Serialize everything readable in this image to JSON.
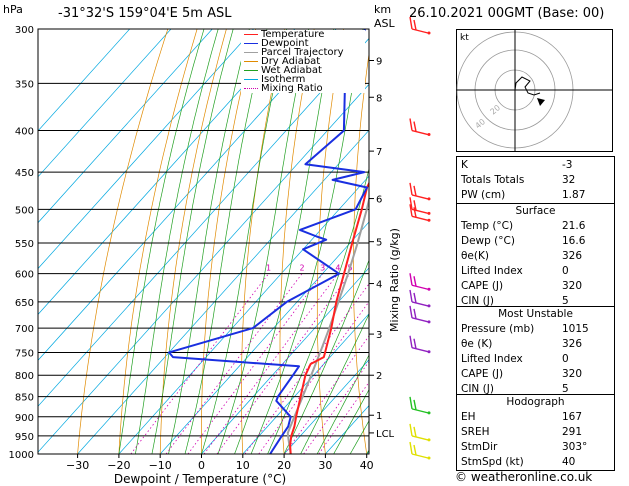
{
  "header": {
    "hpa_unit": "hPa",
    "location": "-31°32'S 159°04'E 5m ASL",
    "km_unit": "km",
    "asl_unit": "ASL",
    "datetime": "26.10.2021 00GMT (Base: 00)"
  },
  "footer": {
    "credit": "© weatheronline.co.uk"
  },
  "chart_data": {
    "type": "skew-t",
    "xlabel": "Dewpoint / Temperature (°C)",
    "ylabel_right": "Mixing Ratio (g/kg)",
    "x_ticks": [
      "−30",
      "−20",
      "−10",
      "0",
      "10",
      "20",
      "30",
      "40"
    ],
    "x_tick_values": [
      -30,
      -20,
      -10,
      0,
      10,
      20,
      30,
      40
    ],
    "pressure_levels": [
      300,
      350,
      400,
      450,
      500,
      550,
      600,
      650,
      700,
      750,
      800,
      850,
      900,
      950,
      1000
    ],
    "km_ticks": [
      {
        "label": "9",
        "p": 328
      },
      {
        "label": "8",
        "p": 364
      },
      {
        "label": "7",
        "p": 424
      },
      {
        "label": "6",
        "p": 485
      },
      {
        "label": "5",
        "p": 548
      },
      {
        "label": "4",
        "p": 617
      },
      {
        "label": "3",
        "p": 712
      },
      {
        "label": "2",
        "p": 800
      },
      {
        "label": "1",
        "p": 896
      },
      {
        "label": "LCL",
        "p": 942
      }
    ],
    "mixing_ratio_labels": [
      "1",
      "2",
      "3",
      "4",
      "5",
      "8",
      "10",
      "15",
      "20",
      "25"
    ],
    "mixing_ratio_values": [
      1,
      2,
      3,
      4,
      5,
      8,
      10,
      15,
      20,
      25
    ],
    "legend": [
      {
        "name": "Temperature",
        "color": "#ff2020",
        "style": "solid"
      },
      {
        "name": "Dewpoint",
        "color": "#1a2fe0",
        "style": "solid"
      },
      {
        "name": "Parcel Trajectory",
        "color": "#a0a0a0",
        "style": "solid"
      },
      {
        "name": "Dry Adiabat",
        "color": "#e08a00",
        "style": "solid"
      },
      {
        "name": "Wet Adiabat",
        "color": "#22a022",
        "style": "solid"
      },
      {
        "name": "Isotherm",
        "color": "#00a8e0",
        "style": "solid"
      },
      {
        "name": "Mixing Ratio",
        "color": "#d000b0",
        "style": "dotted"
      }
    ],
    "temperature": [
      {
        "p": 1000,
        "t": 21.6
      },
      {
        "p": 975,
        "t": 19.5
      },
      {
        "p": 950,
        "t": 17.8
      },
      {
        "p": 925,
        "t": 16.5
      },
      {
        "p": 900,
        "t": 14.8
      },
      {
        "p": 850,
        "t": 11.5
      },
      {
        "p": 800,
        "t": 8.0
      },
      {
        "p": 775,
        "t": 6.8
      },
      {
        "p": 760,
        "t": 8.5
      },
      {
        "p": 750,
        "t": 7.8
      },
      {
        "p": 700,
        "t": 4.0
      },
      {
        "p": 650,
        "t": -0.5
      },
      {
        "p": 600,
        "t": -4.8
      },
      {
        "p": 550,
        "t": -9.5
      },
      {
        "p": 500,
        "t": -14.5
      },
      {
        "p": 470,
        "t": -18.0
      },
      {
        "p": 450,
        "t": -19.5
      },
      {
        "p": 440,
        "t": -20.5
      },
      {
        "p": 420,
        "t": -23.0
      },
      {
        "p": 400,
        "t": -25.5
      },
      {
        "p": 350,
        "t": -33.0
      },
      {
        "p": 300,
        "t": -41.5
      }
    ],
    "dewpoint": [
      {
        "p": 1000,
        "t": 16.6
      },
      {
        "p": 950,
        "t": 15.5
      },
      {
        "p": 925,
        "t": 15.0
      },
      {
        "p": 900,
        "t": 13.5
      },
      {
        "p": 860,
        "t": 6.5
      },
      {
        "p": 850,
        "t": 6.0
      },
      {
        "p": 800,
        "t": 5.0
      },
      {
        "p": 780,
        "t": 4.5
      },
      {
        "p": 760,
        "t": -28.0
      },
      {
        "p": 750,
        "t": -30.0
      },
      {
        "p": 700,
        "t": -15.0
      },
      {
        "p": 650,
        "t": -12.5
      },
      {
        "p": 600,
        "t": -6.0
      },
      {
        "p": 560,
        "t": -20.0
      },
      {
        "p": 545,
        "t": -16.5
      },
      {
        "p": 540,
        "t": -19.5
      },
      {
        "p": 530,
        "t": -25.0
      },
      {
        "p": 500,
        "t": -16.0
      },
      {
        "p": 470,
        "t": -18.0
      },
      {
        "p": 460,
        "t": -28.0
      },
      {
        "p": 450,
        "t": -22.0
      },
      {
        "p": 440,
        "t": -38.0
      },
      {
        "p": 400,
        "t": -36.0
      },
      {
        "p": 350,
        "t": -46.0
      },
      {
        "p": 310,
        "t": -52.0
      },
      {
        "p": 300,
        "t": -53.0
      }
    ],
    "parcel": [
      {
        "p": 1000,
        "t": 21.6
      },
      {
        "p": 950,
        "t": 17.0
      },
      {
        "p": 942,
        "t": 16.3
      },
      {
        "p": 900,
        "t": 14.4
      },
      {
        "p": 850,
        "t": 12.0
      },
      {
        "p": 800,
        "t": 9.4
      },
      {
        "p": 750,
        "t": 6.6
      },
      {
        "p": 700,
        "t": 3.5
      },
      {
        "p": 650,
        "t": 0.0
      },
      {
        "p": 600,
        "t": -3.8
      },
      {
        "p": 550,
        "t": -8.2
      },
      {
        "p": 500,
        "t": -13.3
      },
      {
        "p": 450,
        "t": -19.3
      },
      {
        "p": 400,
        "t": -26.3
      },
      {
        "p": 350,
        "t": -34.7
      },
      {
        "p": 300,
        "t": -44.8
      }
    ],
    "wind_barbs": [
      {
        "p": 300,
        "color": "#ff2020"
      },
      {
        "p": 400,
        "color": "#ff2020"
      },
      {
        "p": 480,
        "color": "#ff2020"
      },
      {
        "p": 500,
        "color": "#ff2020"
      },
      {
        "p": 510,
        "color": "#ff2020"
      },
      {
        "p": 620,
        "color": "#d000b0"
      },
      {
        "p": 650,
        "color": "#9020c0"
      },
      {
        "p": 680,
        "color": "#9020c0"
      },
      {
        "p": 740,
        "color": "#9020c0"
      },
      {
        "p": 880,
        "color": "#22c022"
      },
      {
        "p": 950,
        "color": "#e0e000"
      },
      {
        "p": 1000,
        "color": "#e0e000"
      }
    ]
  },
  "hodograph": {
    "unit_label": "kt",
    "ring_labels": [
      "20",
      "40"
    ]
  },
  "indices": [
    {
      "label": "K",
      "value": "-3"
    },
    {
      "label": "Totals Totals",
      "value": "32"
    },
    {
      "label": "PW (cm)",
      "value": "1.87"
    }
  ],
  "surface": {
    "title": "Surface",
    "rows": [
      {
        "label": "Temp (°C)",
        "value": "21.6"
      },
      {
        "label": "Dewp (°C)",
        "value": "16.6"
      },
      {
        "label": "θe(K)",
        "value": "326"
      },
      {
        "label": "Lifted Index",
        "value": "0"
      },
      {
        "label": "CAPE (J)",
        "value": "320"
      },
      {
        "label": "CIN (J)",
        "value": "5"
      }
    ]
  },
  "most_unstable": {
    "title": "Most Unstable",
    "rows": [
      {
        "label": "Pressure (mb)",
        "value": "1015"
      },
      {
        "label": "θe (K)",
        "value": "326"
      },
      {
        "label": "Lifted Index",
        "value": "0"
      },
      {
        "label": "CAPE (J)",
        "value": "320"
      },
      {
        "label": "CIN (J)",
        "value": "5"
      }
    ]
  },
  "hodograph_table": {
    "title": "Hodograph",
    "rows": [
      {
        "label": "EH",
        "value": "167"
      },
      {
        "label": "SREH",
        "value": "291"
      },
      {
        "label": "StmDir",
        "value": "303°"
      },
      {
        "label": "StmSpd (kt)",
        "value": "40"
      }
    ]
  }
}
